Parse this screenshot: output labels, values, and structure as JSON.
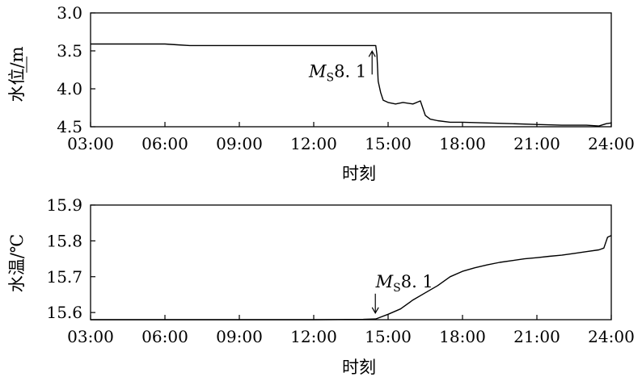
{
  "chart_data": [
    {
      "type": "line",
      "panel": "top",
      "xlabel": "时刻",
      "ylabel": "水位/m",
      "ylabel_underlined_char": "位",
      "y_inverted": true,
      "xlim": [
        3,
        24
      ],
      "ylim": [
        3.0,
        4.5
      ],
      "x_tick_labels": [
        "03:00",
        "06:00",
        "09:00",
        "12:00",
        "15:00",
        "18:00",
        "21:00",
        "24:00"
      ],
      "y_ticks": [
        3.0,
        3.5,
        4.0,
        4.5
      ],
      "y_tick_labels": [
        "3.0",
        "3.5",
        "4.0",
        "4.5"
      ],
      "grid": false,
      "annotation": {
        "text_main": "M",
        "text_sub": "S",
        "text_tail": "8. 1",
        "x": 14.55,
        "y": 3.45,
        "arrow": "up"
      },
      "series": [
        {
          "x": [
            3.0,
            6.0,
            6.5,
            7.0,
            10.0,
            12.0,
            14.0,
            14.5,
            14.55,
            14.6,
            14.7,
            14.8,
            15.0,
            15.3,
            15.6,
            16.0,
            16.3,
            16.5,
            16.7,
            17.0,
            17.5,
            18.0,
            19.0,
            20.0,
            21.0,
            22.0,
            23.0,
            23.5,
            23.8,
            24.0
          ],
          "y": [
            3.41,
            3.41,
            3.42,
            3.43,
            3.43,
            3.43,
            3.43,
            3.43,
            3.55,
            3.9,
            4.05,
            4.15,
            4.18,
            4.2,
            4.18,
            4.2,
            4.16,
            4.35,
            4.4,
            4.42,
            4.44,
            4.44,
            4.45,
            4.46,
            4.47,
            4.48,
            4.48,
            4.49,
            4.46,
            4.45
          ]
        }
      ]
    },
    {
      "type": "line",
      "panel": "bottom",
      "xlabel": "时刻",
      "ylabel": "水温/℃",
      "xlim": [
        3,
        24
      ],
      "ylim": [
        15.58,
        15.9
      ],
      "x_tick_labels": [
        "03:00",
        "06:00",
        "09:00",
        "12:00",
        "15:00",
        "18:00",
        "21:00",
        "24:00"
      ],
      "y_ticks": [
        15.6,
        15.7,
        15.8,
        15.9
      ],
      "y_tick_labels": [
        "15.6",
        "15.7",
        "15.8",
        "15.9"
      ],
      "grid": false,
      "annotation": {
        "text_main": "M",
        "text_sub": "S",
        "text_tail": "8. 1",
        "x": 14.55,
        "y": 15.585,
        "arrow": "down"
      },
      "series": [
        {
          "x": [
            3.0,
            6.0,
            9.0,
            12.0,
            14.0,
            14.5,
            15.0,
            15.5,
            16.0,
            16.5,
            17.0,
            17.5,
            18.0,
            18.5,
            19.0,
            19.5,
            20.0,
            20.5,
            21.0,
            21.5,
            22.0,
            22.5,
            23.0,
            23.5,
            23.7,
            23.85,
            24.0
          ],
          "y": [
            15.58,
            15.58,
            15.58,
            15.58,
            15.581,
            15.582,
            15.595,
            15.61,
            15.635,
            15.655,
            15.675,
            15.7,
            15.715,
            15.725,
            15.733,
            15.74,
            15.745,
            15.75,
            15.753,
            15.757,
            15.76,
            15.765,
            15.77,
            15.775,
            15.78,
            15.81,
            15.815
          ]
        }
      ]
    }
  ]
}
